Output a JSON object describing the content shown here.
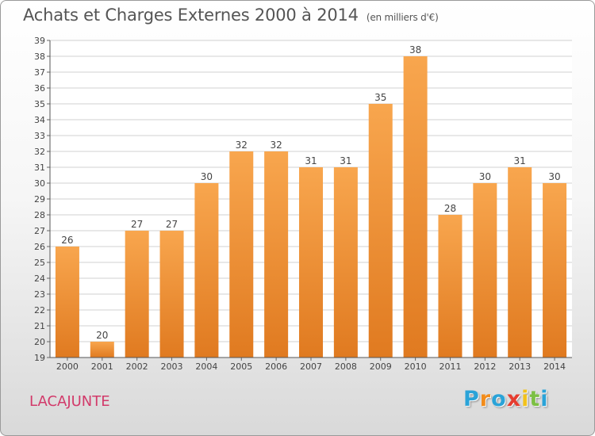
{
  "header": {
    "title": "Achats et Charges Externes 2000 à 2014",
    "unit": "(en milliers d'€)"
  },
  "commune": "LACAJUNTE",
  "logo": {
    "letters": [
      "P",
      "r",
      "o",
      "x",
      "i",
      "t",
      "i"
    ],
    "colors": [
      "#2aa3d8",
      "#f28c1b",
      "#2aa3d8",
      "#e63c2f",
      "#f2c21b",
      "#7cc043",
      "#2aa3d8"
    ]
  },
  "colors": {
    "bar_light": "#f8a64e",
    "bar_dark": "#e07a20",
    "grid": "#d0d0d0"
  },
  "chart_data": {
    "type": "bar",
    "title": "Achats et Charges Externes 2000 à 2014",
    "subtitle": "(en milliers d'€)",
    "xlabel": "",
    "ylabel": "",
    "categories": [
      "2000",
      "2001",
      "2002",
      "2003",
      "2004",
      "2005",
      "2006",
      "2007",
      "2008",
      "2009",
      "2010",
      "2011",
      "2012",
      "2013",
      "2014"
    ],
    "values": [
      26,
      20,
      27,
      27,
      30,
      32,
      32,
      31,
      31,
      35,
      38,
      28,
      30,
      31,
      30
    ],
    "ylim": [
      19,
      39
    ],
    "yticks": [
      19,
      20,
      21,
      22,
      23,
      24,
      25,
      26,
      27,
      28,
      29,
      30,
      31,
      32,
      33,
      34,
      35,
      36,
      37,
      38,
      39
    ],
    "grid": true,
    "legend": "none"
  }
}
